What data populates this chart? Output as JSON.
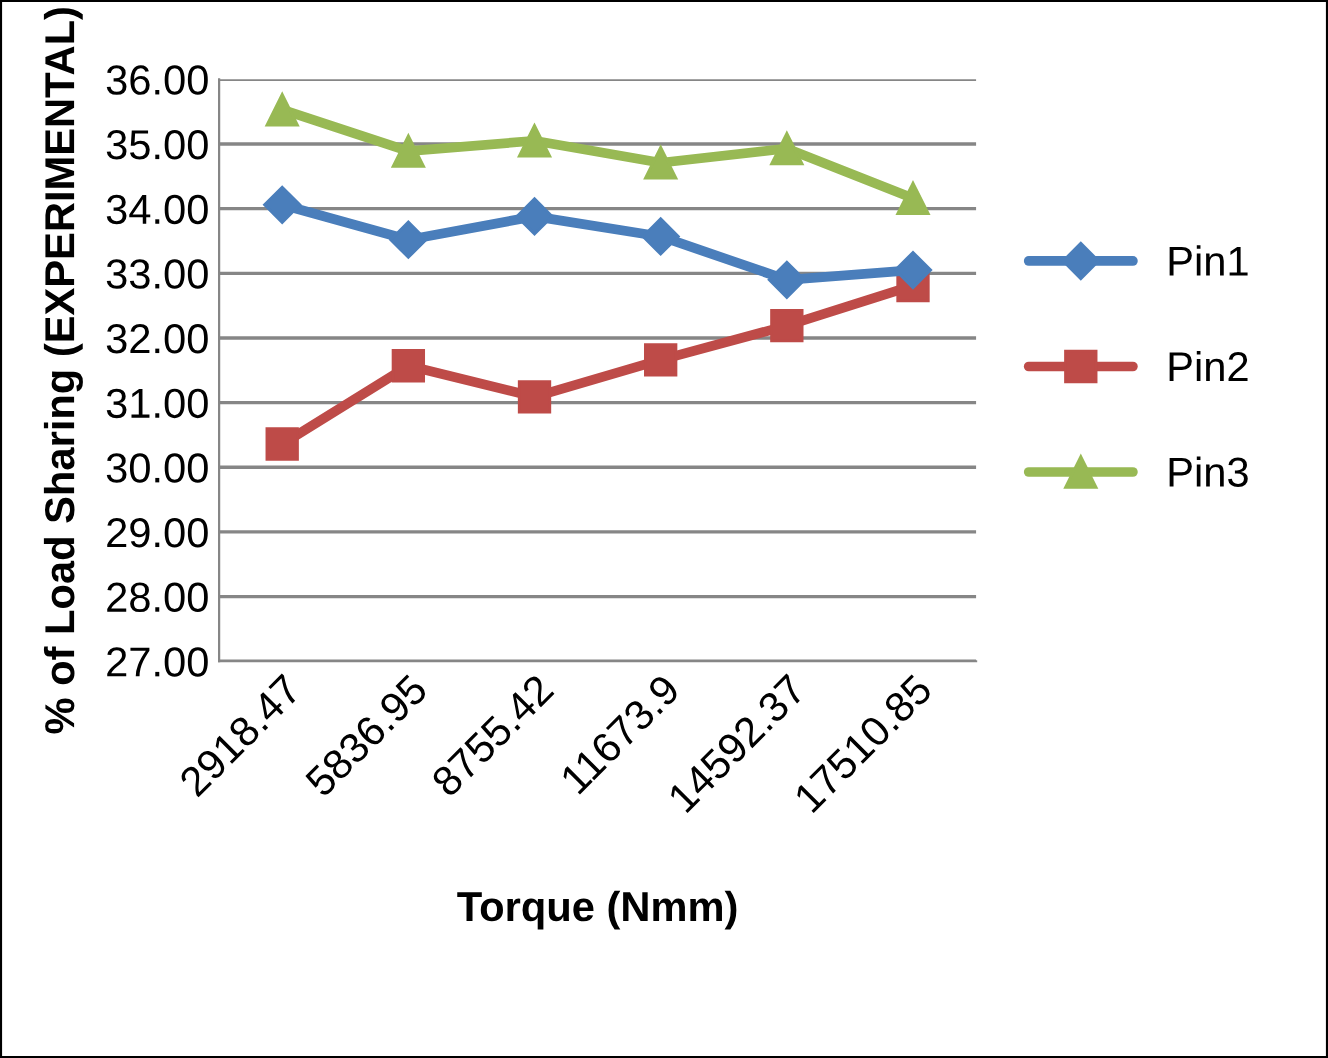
{
  "chart_data": {
    "type": "line",
    "xlabel": "Torque (Nmm)",
    "ylabel": "% of Load Sharing (EXPERIMENTAL)",
    "categories": [
      "2918.47",
      "5836.95",
      "8755.42",
      "11673.9",
      "14592.37",
      "17510.85"
    ],
    "series": [
      {
        "name": "Pin1",
        "color": "#4a7ebb",
        "marker": "diamond",
        "values": [
          34.06,
          33.52,
          33.88,
          33.57,
          32.9,
          33.05
        ]
      },
      {
        "name": "Pin2",
        "color": "#be4b48",
        "marker": "square",
        "values": [
          30.36,
          31.57,
          31.09,
          31.66,
          32.19,
          32.81
        ]
      },
      {
        "name": "Pin3",
        "color": "#98b954",
        "marker": "triangle",
        "values": [
          35.53,
          34.89,
          35.05,
          34.71,
          34.93,
          34.16
        ]
      }
    ],
    "ylim": [
      27,
      36
    ],
    "yticks": [
      {
        "value": 27,
        "label": "27.00"
      },
      {
        "value": 28,
        "label": "28.00"
      },
      {
        "value": 29,
        "label": "29.00"
      },
      {
        "value": 30,
        "label": "30.00"
      },
      {
        "value": 31,
        "label": "31.00"
      },
      {
        "value": 32,
        "label": "32.00"
      },
      {
        "value": 33,
        "label": "33.00"
      },
      {
        "value": 34,
        "label": "34.00"
      },
      {
        "value": 35,
        "label": "35.00"
      },
      {
        "value": 36,
        "label": "36.00"
      }
    ],
    "grid": "y",
    "legend": "right",
    "line_style": "solid"
  }
}
